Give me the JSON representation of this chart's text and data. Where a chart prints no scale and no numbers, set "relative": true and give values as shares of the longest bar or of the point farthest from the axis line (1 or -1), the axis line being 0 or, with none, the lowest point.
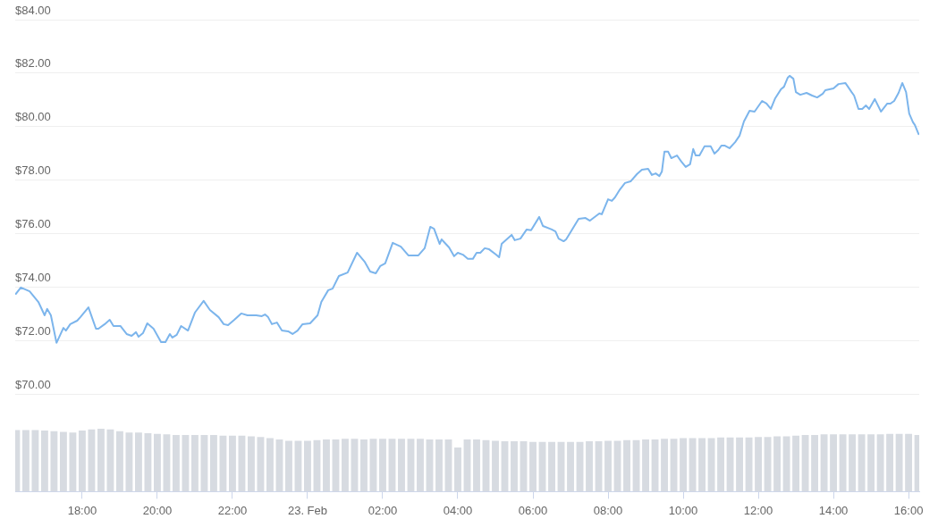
{
  "chart_data": [
    {
      "type": "line",
      "xlim": [
        "--02-22T16:13",
        "--02-23T16:17"
      ],
      "ylim": [
        70,
        84
      ],
      "tick_labels": "y",
      "grid": "y",
      "marker": "none",
      "line_style": "solid",
      "yticks": [
        {
          "value": 70,
          "label": "$70.00"
        },
        {
          "value": 72,
          "label": "$72.00"
        },
        {
          "value": 74,
          "label": "$74.00"
        },
        {
          "value": 76,
          "label": "$76.00"
        },
        {
          "value": 78,
          "label": "$78.00"
        },
        {
          "value": 80,
          "label": "$80.00"
        },
        {
          "value": 82,
          "label": "$82.00"
        },
        {
          "value": 84,
          "label": "$84.00"
        }
      ],
      "x": [
        "--02-22T16:14",
        "--02-22T16:22",
        "--02-22T16:36",
        "--02-22T16:50",
        "--02-22T17:00",
        "--02-22T17:04",
        "--02-22T17:10",
        "--02-22T17:19",
        "--02-22T17:30",
        "--02-22T17:34",
        "--02-22T17:41",
        "--02-22T17:52",
        "--02-22T17:57",
        "--02-22T18:10",
        "--02-22T18:14",
        "--02-22T18:22",
        "--02-22T18:26",
        "--02-22T18:36",
        "--02-22T18:44",
        "--02-22T18:50",
        "--02-22T19:01",
        "--02-22T19:11",
        "--02-22T19:19",
        "--02-22T19:26",
        "--02-22T19:30",
        "--02-22T19:37",
        "--02-22T19:44",
        "--02-22T19:54",
        "--02-22T20:06",
        "--02-22T20:13",
        "--02-22T20:20",
        "--02-22T20:24",
        "--02-22T20:31",
        "--02-22T20:38",
        "--02-22T20:49",
        "--02-22T21:00",
        "--02-22T21:14",
        "--02-22T21:24",
        "--02-22T21:38",
        "--02-22T21:46",
        "--02-22T21:53",
        "--02-22T22:03",
        "--02-22T22:14",
        "--02-22T22:24",
        "--02-22T22:38",
        "--02-22T22:47",
        "--02-22T22:52",
        "--02-22T22:57",
        "--02-22T23:03",
        "--02-22T23:11",
        "--02-22T23:19",
        "--02-22T23:29",
        "--02-22T23:36",
        "--02-22T23:44",
        "--02-22T23:52",
        "--02-23T00:04",
        "--02-23T00:16",
        "--02-23T00:22",
        "--02-23T00:33",
        "--02-23T00:40",
        "--02-23T00:50",
        "--02-23T01:04",
        "--02-23T01:19",
        "--02-23T01:31",
        "--02-23T01:40",
        "--02-23T01:49",
        "--02-23T01:56",
        "--02-23T02:04",
        "--02-23T02:16",
        "--02-23T02:29",
        "--02-23T02:41",
        "--02-23T02:57",
        "--02-23T03:07",
        "--02-23T03:16",
        "--02-23T03:22",
        "--02-23T03:31",
        "--02-23T03:34",
        "--02-23T03:46",
        "--02-23T03:54",
        "--02-23T04:00",
        "--02-23T04:08",
        "--02-23T04:16",
        "--02-23T04:24",
        "--02-23T04:30",
        "--02-23T04:36",
        "--02-23T04:43",
        "--02-23T04:50",
        "--02-23T05:01",
        "--02-23T05:06",
        "--02-23T05:10",
        "--02-23T05:26",
        "--02-23T05:31",
        "--02-23T05:40",
        "--02-23T05:50",
        "--02-23T05:57",
        "--02-23T06:10",
        "--02-23T06:16",
        "--02-23T06:30",
        "--02-23T06:36",
        "--02-23T06:41",
        "--02-23T06:49",
        "--02-23T06:53",
        "--02-23T07:00",
        "--02-23T07:13",
        "--02-23T07:24",
        "--02-23T07:31",
        "--02-23T07:46",
        "--02-23T07:50",
        "--02-23T08:00",
        "--02-23T08:06",
        "--02-23T08:11",
        "--02-23T08:19",
        "--02-23T08:27",
        "--02-23T08:36",
        "--02-23T08:46",
        "--02-23T08:54",
        "--02-23T09:04",
        "--02-23T09:10",
        "--02-23T09:16",
        "--02-23T09:22",
        "--02-23T09:26",
        "--02-23T09:30",
        "--02-23T09:36",
        "--02-23T09:41",
        "--02-23T09:50",
        "--02-23T09:57",
        "--02-23T10:04",
        "--02-23T10:11",
        "--02-23T10:16",
        "--02-23T10:20",
        "--02-23T10:26",
        "--02-23T10:34",
        "--02-23T10:44",
        "--02-23T10:50",
        "--02-23T10:56",
        "--02-23T11:01",
        "--02-23T11:06",
        "--02-23T11:14",
        "--02-23T11:23",
        "--02-23T11:30",
        "--02-23T11:37",
        "--02-23T11:46",
        "--02-23T11:54",
        "--02-23T12:06",
        "--02-23T12:13",
        "--02-23T12:20",
        "--02-23T12:27",
        "--02-23T12:36",
        "--02-23T12:41",
        "--02-23T12:47",
        "--02-23T12:50",
        "--02-23T12:56",
        "--02-23T13:00",
        "--02-23T13:07",
        "--02-23T13:17",
        "--02-23T13:26",
        "--02-23T13:34",
        "--02-23T13:43",
        "--02-23T13:47",
        "--02-23T14:00",
        "--02-23T14:08",
        "--02-23T14:19",
        "--02-23T14:22",
        "--02-23T14:29",
        "--02-23T14:33",
        "--02-23T14:40",
        "--02-23T14:46",
        "--02-23T14:52",
        "--02-23T14:57",
        "--02-23T15:06",
        "--02-23T15:16",
        "--02-23T15:26",
        "--02-23T15:31",
        "--02-23T15:37",
        "--02-23T15:44",
        "--02-23T15:50",
        "--02-23T15:56",
        "--02-23T16:01",
        "--02-23T16:07",
        "--02-23T16:10",
        "--02-23T16:16"
      ],
      "series": [
        {
          "color": "#7cb5ec",
          "values": [
            73.74,
            73.98,
            73.84,
            73.44,
            72.94,
            73.18,
            72.94,
            71.91,
            72.47,
            72.37,
            72.61,
            72.74,
            72.87,
            73.24,
            72.97,
            72.44,
            72.44,
            72.61,
            72.77,
            72.54,
            72.54,
            72.24,
            72.17,
            72.31,
            72.14,
            72.27,
            72.64,
            72.44,
            71.94,
            71.94,
            72.24,
            72.11,
            72.21,
            72.54,
            72.37,
            73.04,
            73.48,
            73.14,
            72.87,
            72.61,
            72.57,
            72.77,
            73.01,
            72.94,
            72.94,
            72.91,
            72.97,
            72.87,
            72.61,
            72.67,
            72.37,
            72.34,
            72.24,
            72.37,
            72.61,
            72.64,
            72.94,
            73.44,
            73.88,
            73.94,
            74.41,
            74.54,
            75.28,
            74.95,
            74.58,
            74.51,
            74.78,
            74.88,
            75.65,
            75.51,
            75.18,
            75.18,
            75.45,
            76.25,
            76.18,
            75.61,
            75.78,
            75.48,
            75.15,
            75.28,
            75.21,
            75.05,
            75.05,
            75.28,
            75.28,
            75.45,
            75.41,
            75.21,
            75.11,
            75.61,
            75.95,
            75.75,
            75.81,
            76.15,
            76.12,
            76.62,
            76.28,
            76.15,
            76.08,
            75.81,
            75.71,
            75.78,
            76.05,
            76.55,
            76.58,
            76.48,
            76.75,
            76.72,
            77.28,
            77.22,
            77.35,
            77.65,
            77.89,
            77.95,
            78.22,
            78.39,
            78.42,
            78.19,
            78.25,
            78.15,
            78.32,
            79.06,
            79.06,
            78.82,
            78.92,
            78.69,
            78.49,
            78.59,
            79.16,
            78.92,
            78.92,
            79.26,
            79.26,
            78.99,
            79.12,
            79.29,
            79.29,
            79.19,
            79.42,
            79.66,
            80.19,
            80.59,
            80.56,
            80.96,
            80.86,
            80.66,
            81.06,
            81.39,
            81.49,
            81.83,
            81.9,
            81.79,
            81.29,
            81.19,
            81.26,
            81.16,
            81.09,
            81.23,
            81.36,
            81.43,
            81.59,
            81.63,
            81.53,
            81.29,
            81.16,
            80.66,
            80.66,
            80.79,
            80.66,
            81.03,
            80.56,
            80.86,
            80.86,
            80.96,
            81.26,
            81.63,
            81.29,
            80.49,
            80.16,
            80.06,
            79.72
          ]
        }
      ]
    },
    {
      "type": "bar",
      "relative": true,
      "xlim": [
        "--02-22T16:13",
        "--02-23T16:17"
      ],
      "tick_labels": "x",
      "grid": false,
      "color": "#d7dbe1",
      "xticks": [
        {
          "value": "--02-22T18:00",
          "label": "18:00"
        },
        {
          "value": "--02-22T20:00",
          "label": "20:00"
        },
        {
          "value": "--02-22T22:00",
          "label": "22:00"
        },
        {
          "value": "--02-23T00:00",
          "label": "23. Feb"
        },
        {
          "value": "--02-23T02:00",
          "label": "02:00"
        },
        {
          "value": "--02-23T04:00",
          "label": "04:00"
        },
        {
          "value": "--02-23T06:00",
          "label": "06:00"
        },
        {
          "value": "--02-23T08:00",
          "label": "08:00"
        },
        {
          "value": "--02-23T10:00",
          "label": "10:00"
        },
        {
          "value": "--02-23T12:00",
          "label": "12:00"
        },
        {
          "value": "--02-23T14:00",
          "label": "14:00"
        },
        {
          "value": "--02-23T16:00",
          "label": "16:00"
        }
      ],
      "x": [
        "--02-22T16:15",
        "--02-22T16:30",
        "--02-22T16:45",
        "--02-22T17:00",
        "--02-22T17:15",
        "--02-22T17:30",
        "--02-22T17:45",
        "--02-22T18:00",
        "--02-22T18:15",
        "--02-22T18:30",
        "--02-22T18:45",
        "--02-22T19:00",
        "--02-22T19:15",
        "--02-22T19:30",
        "--02-22T19:45",
        "--02-22T20:00",
        "--02-22T20:15",
        "--02-22T20:30",
        "--02-22T20:45",
        "--02-22T21:00",
        "--02-22T21:15",
        "--02-22T21:30",
        "--02-22T21:45",
        "--02-22T22:00",
        "--02-22T22:15",
        "--02-22T22:30",
        "--02-22T22:45",
        "--02-22T23:00",
        "--02-22T23:15",
        "--02-22T23:30",
        "--02-22T23:45",
        "--02-23T00:00",
        "--02-23T00:15",
        "--02-23T00:30",
        "--02-23T00:45",
        "--02-23T01:00",
        "--02-23T01:15",
        "--02-23T01:30",
        "--02-23T01:45",
        "--02-23T02:00",
        "--02-23T02:15",
        "--02-23T02:30",
        "--02-23T02:45",
        "--02-23T03:00",
        "--02-23T03:15",
        "--02-23T03:30",
        "--02-23T03:45",
        "--02-23T04:00",
        "--02-23T04:15",
        "--02-23T04:30",
        "--02-23T04:45",
        "--02-23T05:00",
        "--02-23T05:15",
        "--02-23T05:30",
        "--02-23T05:45",
        "--02-23T06:00",
        "--02-23T06:15",
        "--02-23T06:30",
        "--02-23T06:45",
        "--02-23T07:00",
        "--02-23T07:15",
        "--02-23T07:30",
        "--02-23T07:45",
        "--02-23T08:00",
        "--02-23T08:15",
        "--02-23T08:30",
        "--02-23T08:45",
        "--02-23T09:00",
        "--02-23T09:15",
        "--02-23T09:30",
        "--02-23T09:45",
        "--02-23T10:00",
        "--02-23T10:15",
        "--02-23T10:30",
        "--02-23T10:45",
        "--02-23T11:00",
        "--02-23T11:15",
        "--02-23T11:30",
        "--02-23T11:45",
        "--02-23T12:00",
        "--02-23T12:15",
        "--02-23T12:30",
        "--02-23T12:45",
        "--02-23T13:00",
        "--02-23T13:15",
        "--02-23T13:30",
        "--02-23T13:45",
        "--02-23T14:00",
        "--02-23T14:15",
        "--02-23T14:30",
        "--02-23T14:45",
        "--02-23T15:00",
        "--02-23T15:15",
        "--02-23T15:30",
        "--02-23T15:45",
        "--02-23T16:00",
        "--02-23T16:15"
      ],
      "values": [
        0.98,
        0.98,
        0.98,
        0.97,
        0.96,
        0.95,
        0.94,
        0.97,
        0.99,
        1,
        0.99,
        0.96,
        0.94,
        0.94,
        0.93,
        0.92,
        0.91,
        0.9,
        0.9,
        0.9,
        0.9,
        0.9,
        0.89,
        0.89,
        0.89,
        0.88,
        0.87,
        0.85,
        0.83,
        0.81,
        0.81,
        0.81,
        0.82,
        0.83,
        0.83,
        0.84,
        0.84,
        0.83,
        0.84,
        0.84,
        0.84,
        0.84,
        0.84,
        0.84,
        0.83,
        0.83,
        0.83,
        0.7,
        0.83,
        0.83,
        0.82,
        0.81,
        0.8,
        0.8,
        0.8,
        0.79,
        0.79,
        0.79,
        0.79,
        0.79,
        0.79,
        0.8,
        0.8,
        0.81,
        0.81,
        0.82,
        0.82,
        0.83,
        0.83,
        0.84,
        0.84,
        0.85,
        0.85,
        0.85,
        0.85,
        0.86,
        0.86,
        0.86,
        0.86,
        0.87,
        0.87,
        0.88,
        0.88,
        0.89,
        0.9,
        0.9,
        0.91,
        0.91,
        0.91,
        0.91,
        0.91,
        0.91,
        0.91,
        0.92,
        0.92,
        0.92,
        0.9
      ]
    }
  ]
}
